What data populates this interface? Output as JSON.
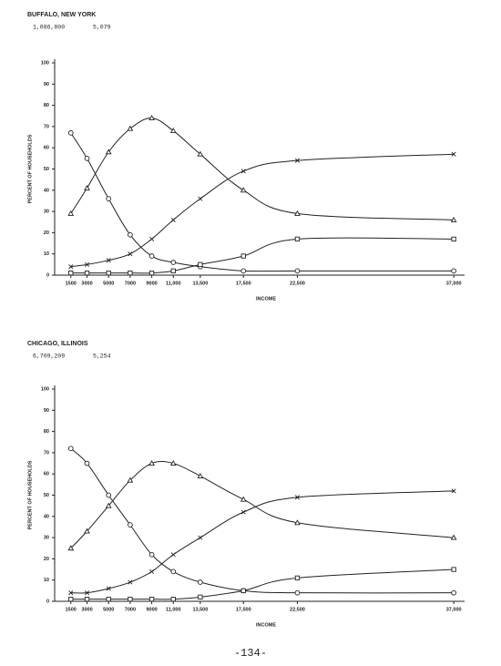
{
  "chart_data": [
    {
      "type": "line",
      "title": "BUFFALO, NEW YORK",
      "subtitle": [
        "1,086,800",
        "5,079"
      ],
      "x_label": "INCOME",
      "y_label": "PERCENT OF HOUSEHOLDS",
      "color": "#222",
      "x": [
        1500,
        3000,
        5000,
        7000,
        9000,
        11000,
        13500,
        17500,
        22500,
        37000
      ],
      "xlim": [
        0,
        38000
      ],
      "xticks": [
        1500,
        3000,
        5000,
        7000,
        9000,
        {
          "value": 11000,
          "label": "11,000"
        },
        {
          "value": 13500,
          "label": "13,500"
        },
        {
          "value": 17500,
          "label": "17,500"
        },
        {
          "value": 22500,
          "label": "22,500"
        },
        {
          "value": 37000,
          "label": "37,000"
        }
      ],
      "ylim": [
        0,
        100
      ],
      "yticks": [
        0,
        10,
        20,
        30,
        40,
        50,
        60,
        70,
        80,
        90,
        100
      ],
      "series": [
        {
          "marker": "circle",
          "values": [
            67,
            55,
            36,
            19,
            9,
            6,
            4,
            2,
            2,
            2
          ]
        },
        {
          "marker": "triangle",
          "values": [
            29,
            41,
            58,
            69,
            74,
            68,
            57,
            40,
            29,
            26
          ]
        },
        {
          "marker": "x",
          "values": [
            4,
            5,
            7,
            10,
            17,
            26,
            36,
            49,
            54,
            57
          ]
        },
        {
          "marker": "square",
          "values": [
            1,
            1,
            1,
            1,
            1,
            2,
            5,
            9,
            17,
            17
          ]
        }
      ]
    },
    {
      "type": "line",
      "title": "CHICAGO, ILLINOIS",
      "subtitle": [
        "6,709,209",
        "5,254"
      ],
      "x_label": "INCOME",
      "y_label": "PERCENT OF HOUSEHOLDS",
      "color": "#222",
      "x": [
        1500,
        3000,
        5000,
        7000,
        9000,
        11000,
        13500,
        17500,
        22500,
        37000
      ],
      "xlim": [
        0,
        38000
      ],
      "xticks": [
        1500,
        3000,
        5000,
        7000,
        9000,
        {
          "value": 11000,
          "label": "11,000"
        },
        {
          "value": 13500,
          "label": "13,500"
        },
        {
          "value": 17500,
          "label": "17,500"
        },
        {
          "value": 22500,
          "label": "22,500"
        },
        {
          "value": 37000,
          "label": "37,000"
        }
      ],
      "ylim": [
        0,
        100
      ],
      "yticks": [
        0,
        10,
        20,
        30,
        40,
        50,
        60,
        70,
        80,
        90,
        100
      ],
      "series": [
        {
          "marker": "circle",
          "values": [
            72,
            65,
            50,
            36,
            22,
            14,
            9,
            5,
            4,
            4
          ]
        },
        {
          "marker": "triangle",
          "values": [
            25,
            33,
            45,
            57,
            65,
            65,
            59,
            48,
            37,
            30
          ]
        },
        {
          "marker": "x",
          "values": [
            4,
            4,
            6,
            9,
            14,
            22,
            30,
            42,
            49,
            52
          ]
        },
        {
          "marker": "square",
          "values": [
            1,
            1,
            1,
            1,
            1,
            1,
            2,
            5,
            11,
            15
          ]
        }
      ]
    }
  ],
  "page_number": "-134-"
}
